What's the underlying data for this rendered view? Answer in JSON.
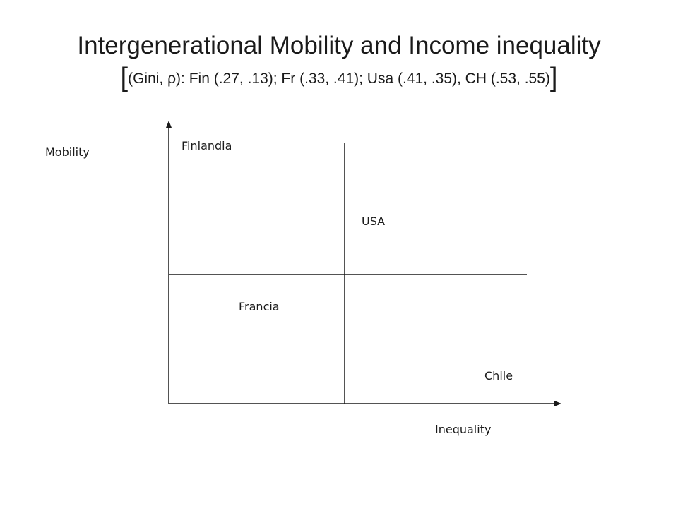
{
  "title": {
    "line1": "Intergenerational Mobility and Income inequality",
    "bracket_open": "[",
    "line2": "(Gini, ρ): Fin (.27, .13); Fr (.33, .41); Usa (.41, .35), CH (.53, .55)",
    "bracket_close": "]"
  },
  "axes": {
    "y_label": "Mobility",
    "x_label": "Inequality"
  },
  "quadrants": {
    "top_left": "Finlandia",
    "top_right": "USA",
    "bottom_left": "Francia",
    "bottom_right": "Chile"
  }
}
